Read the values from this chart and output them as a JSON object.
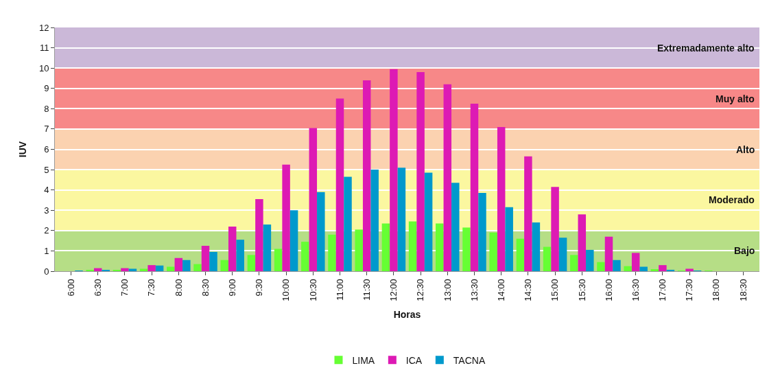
{
  "chart_data": {
    "type": "bar",
    "xlabel": "Horas",
    "ylabel": "IUV",
    "categories": [
      "6:00",
      "6:30",
      "7:00",
      "7:30",
      "8:00",
      "8:30",
      "9:00",
      "9:30",
      "10:00",
      "10:30",
      "11:00",
      "11:30",
      "12:00",
      "12:30",
      "13:00",
      "13:30",
      "14:00",
      "14:30",
      "15:00",
      "15:30",
      "16:00",
      "16:30",
      "17:00",
      "17:30",
      "18:00",
      "18:30"
    ],
    "series": [
      {
        "name": "LIMA",
        "color": "#66ff33",
        "values": [
          0,
          0.05,
          0.05,
          0.12,
          0.22,
          0.35,
          0.55,
          0.8,
          1.1,
          1.45,
          1.8,
          2.05,
          2.35,
          2.45,
          2.35,
          2.15,
          1.9,
          1.6,
          1.2,
          0.8,
          0.45,
          0.25,
          0.1,
          0.03,
          0.02,
          0
        ]
      },
      {
        "name": "ICA",
        "color": "#dd1ab4",
        "values": [
          0,
          0.15,
          0.15,
          0.3,
          0.65,
          1.25,
          2.2,
          3.55,
          5.25,
          7.05,
          8.5,
          9.4,
          9.95,
          9.8,
          9.2,
          8.25,
          7.1,
          5.65,
          4.15,
          2.8,
          1.7,
          0.9,
          0.3,
          0.12,
          0,
          0
        ]
      },
      {
        "name": "TACNA",
        "color": "#0099cc",
        "values": [
          0.03,
          0.05,
          0.12,
          0.28,
          0.55,
          0.95,
          1.55,
          2.3,
          3.0,
          3.9,
          4.65,
          5.0,
          5.1,
          4.85,
          4.35,
          3.85,
          3.15,
          2.4,
          1.65,
          1.05,
          0.55,
          0.22,
          0.07,
          0.02,
          0,
          0
        ]
      }
    ],
    "ylim": [
      0,
      12
    ],
    "yticks": [
      0,
      1,
      2,
      3,
      4,
      5,
      6,
      7,
      8,
      9,
      10,
      11,
      12
    ],
    "bands": [
      {
        "axis": "y",
        "from": 0,
        "to": 2,
        "label": "Bajo",
        "color": "#b6de86"
      },
      {
        "axis": "y",
        "from": 2,
        "to": 5,
        "label": "Moderado",
        "color": "#fbf7a0"
      },
      {
        "axis": "y",
        "from": 5,
        "to": 7,
        "label": "Alto",
        "color": "#fbd2b0"
      },
      {
        "axis": "y",
        "from": 7,
        "to": 10,
        "label": "Muy alto",
        "color": "#f78888"
      },
      {
        "axis": "y",
        "from": 10,
        "to": 12,
        "label": "Extremadamente alto",
        "color": "#cbb8d8"
      }
    ],
    "grid": "y",
    "legend": "bottom"
  }
}
